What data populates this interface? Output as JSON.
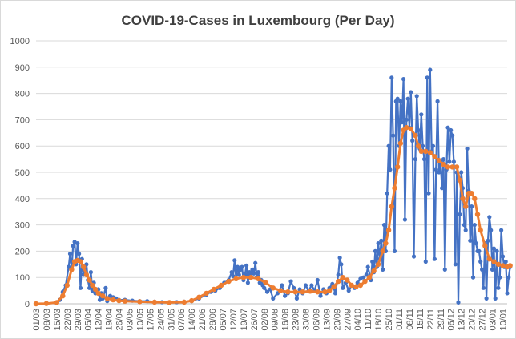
{
  "chart_data": {
    "type": "line",
    "title": "COVID-19-Cases in Luxembourg (Per Day)",
    "xlabel": "",
    "ylabel": "",
    "ylim": [
      0,
      1000
    ],
    "yticks": [
      0,
      100,
      200,
      300,
      400,
      500,
      600,
      700,
      800,
      900,
      1000
    ],
    "grid": true,
    "legend": "none",
    "x_start": "01/03",
    "x_tick_interval_days": 7,
    "x_tick_labels": [
      "01/03",
      "08/03",
      "15/03",
      "22/03",
      "29/03",
      "05/04",
      "12/04",
      "19/04",
      "26/04",
      "03/05",
      "10/05",
      "17/05",
      "24/05",
      "31/05",
      "07/06",
      "14/06",
      "21/06",
      "28/06",
      "05/07",
      "12/07",
      "19/07",
      "26/07",
      "02/08",
      "09/08",
      "16/08",
      "23/08",
      "30/08",
      "06/09",
      "13/09",
      "20/09",
      "27/09",
      "04/10",
      "11/10",
      "18/10",
      "25/10",
      "01/11",
      "08/11",
      "15/11",
      "22/11",
      "29/11",
      "06/12",
      "13/12",
      "20/12",
      "27/12",
      "03/01",
      "10/01"
    ],
    "series": [
      {
        "color": "#4472C4",
        "points": [
          [
            0,
            0
          ],
          [
            7,
            1
          ],
          [
            14,
            2
          ],
          [
            16,
            15
          ],
          [
            18,
            45
          ],
          [
            20,
            70
          ],
          [
            22,
            140
          ],
          [
            23,
            190
          ],
          [
            24,
            130
          ],
          [
            25,
            220
          ],
          [
            26,
            235
          ],
          [
            27,
            150
          ],
          [
            28,
            230
          ],
          [
            29,
            190
          ],
          [
            30,
            60
          ],
          [
            31,
            170
          ],
          [
            32,
            110
          ],
          [
            33,
            130
          ],
          [
            34,
            150
          ],
          [
            35,
            90
          ],
          [
            36,
            60
          ],
          [
            37,
            120
          ],
          [
            38,
            50
          ],
          [
            39,
            80
          ],
          [
            40,
            40
          ],
          [
            42,
            55
          ],
          [
            43,
            15
          ],
          [
            44,
            40
          ],
          [
            45,
            20
          ],
          [
            47,
            60
          ],
          [
            48,
            10
          ],
          [
            50,
            30
          ],
          [
            52,
            25
          ],
          [
            54,
            20
          ],
          [
            56,
            15
          ],
          [
            60,
            15
          ],
          [
            65,
            12
          ],
          [
            70,
            10
          ],
          [
            75,
            10
          ],
          [
            80,
            8
          ],
          [
            85,
            6
          ],
          [
            90,
            5
          ],
          [
            95,
            6
          ],
          [
            100,
            8
          ],
          [
            105,
            10
          ],
          [
            110,
            20
          ],
          [
            115,
            35
          ],
          [
            118,
            45
          ],
          [
            121,
            50
          ],
          [
            124,
            60
          ],
          [
            127,
            80
          ],
          [
            130,
            90
          ],
          [
            132,
            120
          ],
          [
            133,
            105
          ],
          [
            134,
            165
          ],
          [
            135,
            95
          ],
          [
            136,
            140
          ],
          [
            137,
            110
          ],
          [
            138,
            130
          ],
          [
            139,
            140
          ],
          [
            140,
            90
          ],
          [
            141,
            110
          ],
          [
            142,
            145
          ],
          [
            143,
            80
          ],
          [
            144,
            120
          ],
          [
            145,
            100
          ],
          [
            146,
            130
          ],
          [
            147,
            115
          ],
          [
            148,
            155
          ],
          [
            149,
            100
          ],
          [
            150,
            120
          ],
          [
            151,
            80
          ],
          [
            152,
            90
          ],
          [
            153,
            70
          ],
          [
            154,
            60
          ],
          [
            156,
            45
          ],
          [
            158,
            55
          ],
          [
            160,
            20
          ],
          [
            163,
            40
          ],
          [
            166,
            70
          ],
          [
            168,
            30
          ],
          [
            170,
            40
          ],
          [
            172,
            85
          ],
          [
            174,
            60
          ],
          [
            176,
            20
          ],
          [
            178,
            55
          ],
          [
            180,
            40
          ],
          [
            182,
            70
          ],
          [
            184,
            50
          ],
          [
            186,
            70
          ],
          [
            188,
            50
          ],
          [
            190,
            90
          ],
          [
            192,
            30
          ],
          [
            194,
            55
          ],
          [
            196,
            40
          ],
          [
            198,
            60
          ],
          [
            200,
            75
          ],
          [
            202,
            40
          ],
          [
            204,
            110
          ],
          [
            205,
            175
          ],
          [
            206,
            150
          ],
          [
            207,
            60
          ],
          [
            209,
            80
          ],
          [
            211,
            50
          ],
          [
            213,
            70
          ],
          [
            215,
            60
          ],
          [
            217,
            80
          ],
          [
            219,
            95
          ],
          [
            221,
            100
          ],
          [
            223,
            110
          ],
          [
            224,
            140
          ],
          [
            226,
            90
          ],
          [
            227,
            160
          ],
          [
            228,
            120
          ],
          [
            229,
            200
          ],
          [
            230,
            140
          ],
          [
            231,
            230
          ],
          [
            232,
            170
          ],
          [
            233,
            240
          ],
          [
            234,
            130
          ],
          [
            235,
            300
          ],
          [
            236,
            200
          ],
          [
            237,
            420
          ],
          [
            238,
            600
          ],
          [
            239,
            510
          ],
          [
            240,
            860
          ],
          [
            241,
            640
          ],
          [
            242,
            200
          ],
          [
            243,
            770
          ],
          [
            244,
            780
          ],
          [
            245,
            600
          ],
          [
            246,
            770
          ],
          [
            247,
            690
          ],
          [
            248,
            855
          ],
          [
            249,
            320
          ],
          [
            250,
            700
          ],
          [
            251,
            780
          ],
          [
            252,
            670
          ],
          [
            253,
            805
          ],
          [
            254,
            620
          ],
          [
            255,
            180
          ],
          [
            256,
            550
          ],
          [
            257,
            790
          ],
          [
            258,
            660
          ],
          [
            259,
            590
          ],
          [
            260,
            720
          ],
          [
            261,
            600
          ],
          [
            262,
            550
          ],
          [
            263,
            160
          ],
          [
            264,
            860
          ],
          [
            265,
            420
          ],
          [
            266,
            890
          ],
          [
            267,
            580
          ],
          [
            268,
            600
          ],
          [
            269,
            170
          ],
          [
            270,
            510
          ],
          [
            271,
            770
          ],
          [
            272,
            500
          ],
          [
            273,
            540
          ],
          [
            274,
            440
          ],
          [
            275,
            550
          ],
          [
            276,
            130
          ],
          [
            277,
            510
          ],
          [
            278,
            670
          ],
          [
            279,
            540
          ],
          [
            280,
            660
          ],
          [
            281,
            640
          ],
          [
            282,
            540
          ],
          [
            283,
            150
          ],
          [
            284,
            500
          ],
          [
            285,
            5
          ],
          [
            286,
            340
          ],
          [
            287,
            500
          ],
          [
            288,
            440
          ],
          [
            289,
            300
          ],
          [
            290,
            280
          ],
          [
            291,
            590
          ],
          [
            292,
            430
          ],
          [
            293,
            240
          ],
          [
            294,
            370
          ],
          [
            295,
            100
          ],
          [
            296,
            300
          ],
          [
            297,
            230
          ],
          [
            298,
            200
          ],
          [
            299,
            200
          ],
          [
            300,
            160
          ],
          [
            301,
            130
          ],
          [
            302,
            60
          ],
          [
            303,
            230
          ],
          [
            304,
            20
          ],
          [
            305,
            240
          ],
          [
            306,
            330
          ],
          [
            307,
            280
          ],
          [
            308,
            130
          ],
          [
            309,
            210
          ],
          [
            310,
            20
          ],
          [
            311,
            200
          ],
          [
            312,
            60
          ],
          [
            313,
            100
          ],
          [
            314,
            280
          ],
          [
            315,
            180
          ],
          [
            316,
            140
          ],
          [
            317,
            160
          ],
          [
            318,
            40
          ],
          [
            319,
            100
          ],
          [
            320,
            140
          ]
        ]
      },
      {
        "color": "#ED7D31",
        "points": [
          [
            0,
            0
          ],
          [
            7,
            1
          ],
          [
            14,
            5
          ],
          [
            18,
            30
          ],
          [
            21,
            70
          ],
          [
            24,
            130
          ],
          [
            26,
            160
          ],
          [
            28,
            165
          ],
          [
            30,
            160
          ],
          [
            32,
            140
          ],
          [
            34,
            110
          ],
          [
            36,
            90
          ],
          [
            38,
            70
          ],
          [
            40,
            55
          ],
          [
            42,
            40
          ],
          [
            45,
            30
          ],
          [
            48,
            20
          ],
          [
            52,
            15
          ],
          [
            56,
            12
          ],
          [
            60,
            10
          ],
          [
            70,
            8
          ],
          [
            80,
            6
          ],
          [
            90,
            5
          ],
          [
            100,
            6
          ],
          [
            105,
            12
          ],
          [
            110,
            25
          ],
          [
            115,
            40
          ],
          [
            120,
            55
          ],
          [
            125,
            70
          ],
          [
            130,
            85
          ],
          [
            135,
            95
          ],
          [
            140,
            100
          ],
          [
            145,
            100
          ],
          [
            150,
            95
          ],
          [
            155,
            80
          ],
          [
            160,
            60
          ],
          [
            165,
            50
          ],
          [
            170,
            45
          ],
          [
            175,
            45
          ],
          [
            180,
            45
          ],
          [
            185,
            48
          ],
          [
            190,
            45
          ],
          [
            195,
            45
          ],
          [
            198,
            50
          ],
          [
            201,
            65
          ],
          [
            204,
            85
          ],
          [
            207,
            100
          ],
          [
            210,
            90
          ],
          [
            213,
            70
          ],
          [
            216,
            65
          ],
          [
            219,
            70
          ],
          [
            222,
            85
          ],
          [
            225,
            100
          ],
          [
            228,
            125
          ],
          [
            231,
            150
          ],
          [
            234,
            200
          ],
          [
            236,
            230
          ],
          [
            238,
            280
          ],
          [
            240,
            370
          ],
          [
            242,
            440
          ],
          [
            244,
            520
          ],
          [
            246,
            610
          ],
          [
            248,
            660
          ],
          [
            250,
            670
          ],
          [
            253,
            665
          ],
          [
            256,
            640
          ],
          [
            258,
            600
          ],
          [
            260,
            580
          ],
          [
            263,
            580
          ],
          [
            266,
            575
          ],
          [
            269,
            560
          ],
          [
            272,
            545
          ],
          [
            275,
            530
          ],
          [
            278,
            520
          ],
          [
            281,
            520
          ],
          [
            284,
            520
          ],
          [
            286,
            470
          ],
          [
            288,
            400
          ],
          [
            290,
            370
          ],
          [
            292,
            420
          ],
          [
            294,
            420
          ],
          [
            296,
            400
          ],
          [
            298,
            340
          ],
          [
            300,
            280
          ],
          [
            303,
            220
          ],
          [
            306,
            170
          ],
          [
            309,
            160
          ],
          [
            312,
            150
          ],
          [
            315,
            145
          ],
          [
            318,
            140
          ],
          [
            320,
            145
          ]
        ]
      }
    ]
  }
}
